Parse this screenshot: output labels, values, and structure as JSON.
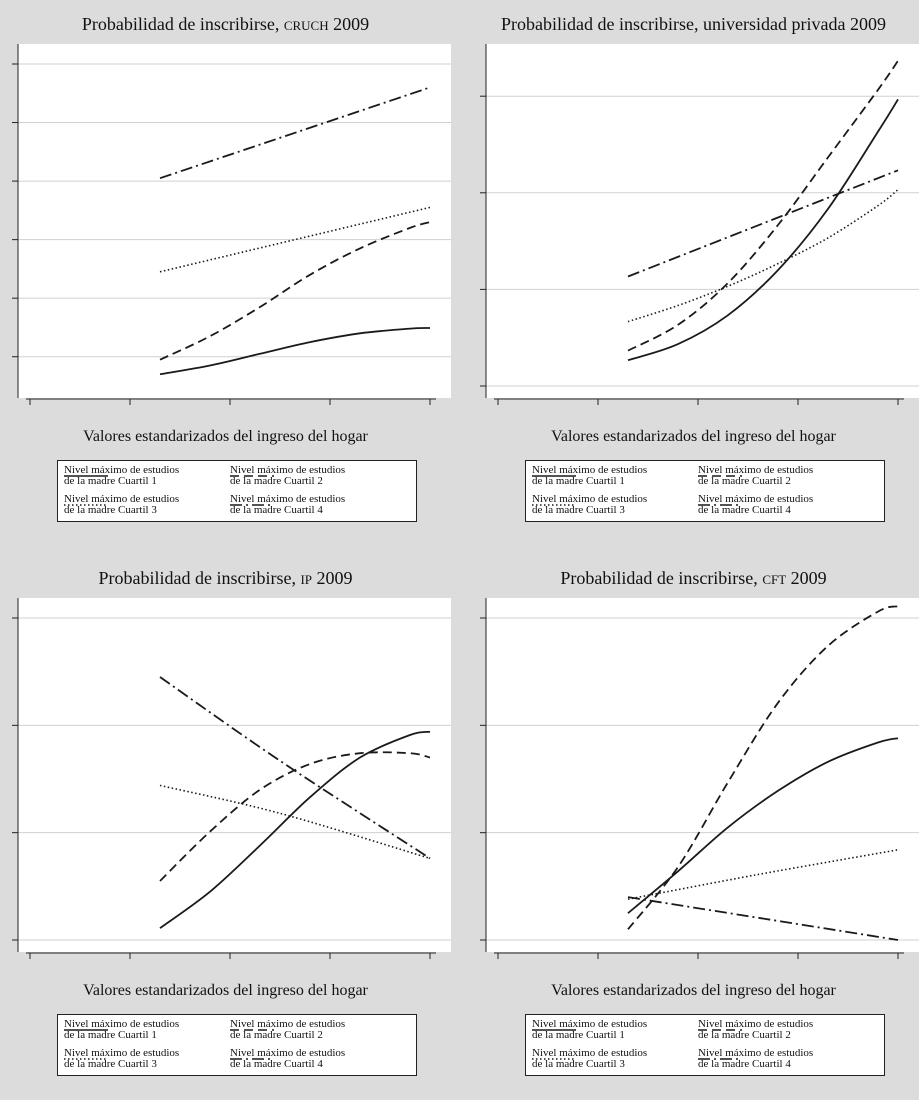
{
  "x_axis_label": "Valores estandarizados del ingreso del hogar",
  "legend": [
    {
      "name": "Nivel máximo de estudios\nde la madre Cuartil 1",
      "style": "solid"
    },
    {
      "name": "Nivel máximo de estudios\nde la madre Cuartil 2",
      "style": "dashed"
    },
    {
      "name": "Nivel máximo de estudios\nde la madre Cuartil 3",
      "style": "dotted"
    },
    {
      "name": "Nivel máximo de estudios\nde la madre Cuartil 4",
      "style": "dashdot"
    }
  ],
  "colors": {
    "background": "#dcdcdc",
    "plot": "#ffffff",
    "gridline": "#d0d0d0",
    "line": "#1a1a1a"
  },
  "chart_data": [
    {
      "type": "line",
      "title_prefix": "Probabilidad de inscribirse, ",
      "title_sc": "cruch",
      "title_suffix": " 2009",
      "xlim": [
        0,
        4
      ],
      "ylim": [
        0,
        1.1
      ],
      "yticks": [
        0.1,
        0.3,
        0.5,
        0.7,
        0.9,
        1.1
      ],
      "series": [
        {
          "style": "solid",
          "x": [
            1.3,
            1.8,
            2.3,
            2.8,
            3.3,
            3.8,
            4.0
          ],
          "y": [
            0.04,
            0.07,
            0.11,
            0.15,
            0.18,
            0.196,
            0.198
          ]
        },
        {
          "style": "dashed",
          "x": [
            1.3,
            1.8,
            2.3,
            2.8,
            3.3,
            3.8,
            4.0
          ],
          "y": [
            0.09,
            0.17,
            0.27,
            0.38,
            0.47,
            0.54,
            0.56
          ]
        },
        {
          "style": "dotted",
          "x": [
            1.3,
            4.0
          ],
          "y": [
            0.39,
            0.61
          ]
        },
        {
          "style": "dashdot",
          "x": [
            1.3,
            4.0
          ],
          "y": [
            0.71,
            1.02
          ]
        }
      ]
    },
    {
      "type": "line",
      "title_prefix": "Probabilidad de inscribirse, universidad privada 2009",
      "title_sc": "",
      "title_suffix": "",
      "xlim": [
        0,
        4
      ],
      "ylim": [
        0,
        1
      ],
      "yticks": [
        0,
        0.3,
        0.6,
        0.9
      ],
      "series": [
        {
          "style": "solid",
          "x": [
            1.3,
            1.8,
            2.3,
            2.8,
            3.3,
            3.8,
            4.0
          ],
          "y": [
            0.08,
            0.13,
            0.22,
            0.36,
            0.55,
            0.79,
            0.89
          ]
        },
        {
          "style": "dashed",
          "x": [
            1.3,
            1.8,
            2.3,
            2.8,
            3.3,
            3.8,
            4.0
          ],
          "y": [
            0.11,
            0.19,
            0.32,
            0.5,
            0.71,
            0.92,
            1.01
          ]
        },
        {
          "style": "dotted",
          "x": [
            1.3,
            1.8,
            2.3,
            2.8,
            3.3,
            3.8,
            4.0
          ],
          "y": [
            0.2,
            0.25,
            0.31,
            0.38,
            0.46,
            0.56,
            0.61
          ]
        },
        {
          "style": "dashdot",
          "x": [
            1.3,
            4.0
          ],
          "y": [
            0.34,
            0.67
          ]
        }
      ]
    },
    {
      "type": "line",
      "title_prefix": "Probabilidad de inscribirse, ",
      "title_sc": "ip",
      "title_suffix": " 2009",
      "xlim": [
        0,
        4
      ],
      "ylim": [
        0,
        0.3
      ],
      "yticks": [
        0,
        0.1,
        0.2,
        0.3
      ],
      "series": [
        {
          "style": "solid",
          "x": [
            1.3,
            1.8,
            2.3,
            2.8,
            3.3,
            3.8,
            4.0
          ],
          "y": [
            0.011,
            0.045,
            0.088,
            0.133,
            0.17,
            0.191,
            0.194
          ]
        },
        {
          "style": "dashed",
          "x": [
            1.3,
            1.8,
            2.3,
            2.8,
            3.3,
            3.8,
            4.0
          ],
          "y": [
            0.055,
            0.101,
            0.14,
            0.164,
            0.174,
            0.174,
            0.17
          ]
        },
        {
          "style": "dotted",
          "x": [
            1.3,
            2.5,
            4.0
          ],
          "y": [
            0.144,
            0.118,
            0.076
          ]
        },
        {
          "style": "dashdot",
          "x": [
            1.3,
            2.5,
            4.0
          ],
          "y": [
            0.245,
            0.167,
            0.076
          ]
        }
      ]
    },
    {
      "type": "line",
      "title_prefix": "Probabilidad de inscribirse, ",
      "title_sc": "cft",
      "title_suffix": " 2009",
      "xlim": [
        0,
        4
      ],
      "ylim": [
        0,
        0.3
      ],
      "yticks": [
        0,
        0.1,
        0.2,
        0.3
      ],
      "series": [
        {
          "style": "solid",
          "x": [
            1.3,
            1.8,
            2.3,
            2.8,
            3.3,
            3.8,
            4.0
          ],
          "y": [
            0.025,
            0.064,
            0.105,
            0.139,
            0.166,
            0.184,
            0.188
          ]
        },
        {
          "style": "dashed",
          "x": [
            1.3,
            1.8,
            2.3,
            2.8,
            3.3,
            3.8,
            4.0
          ],
          "y": [
            0.01,
            0.068,
            0.147,
            0.221,
            0.274,
            0.306,
            0.311
          ]
        },
        {
          "style": "dotted",
          "x": [
            1.3,
            2.6,
            4.0
          ],
          "y": [
            0.038,
            0.061,
            0.084
          ]
        },
        {
          "style": "dashdot",
          "x": [
            1.3,
            4.0
          ],
          "y": [
            0.04,
            0.0
          ]
        }
      ]
    }
  ]
}
